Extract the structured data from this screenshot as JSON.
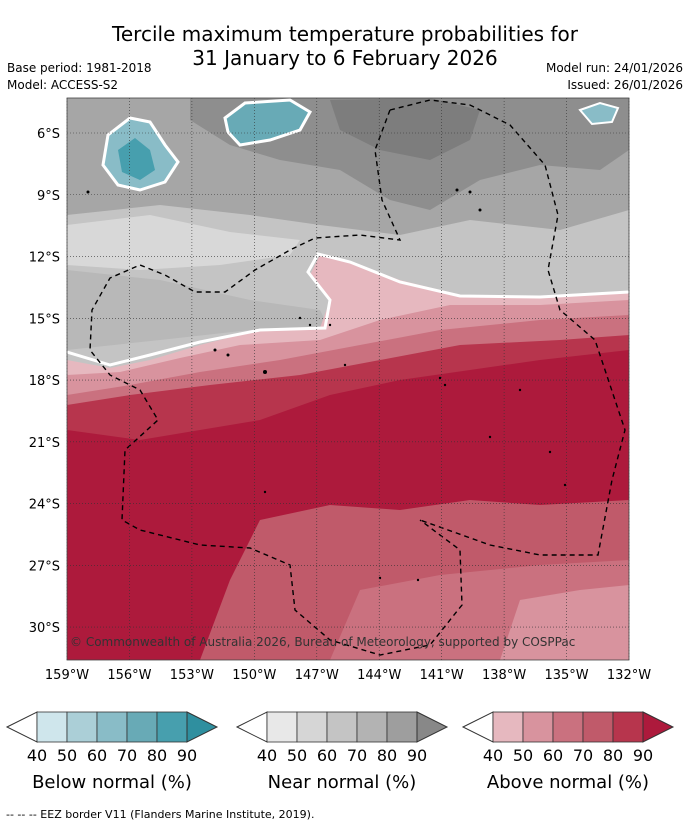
{
  "title": {
    "line1": "Tercile maximum temperature probabilities for",
    "line2": "31 January to 6 February 2026"
  },
  "meta": {
    "base_period": "Base period: 1981-2018",
    "model": "Model: ACCESS-S2",
    "model_run": "Model run: 24/01/2026",
    "issued": "Issued: 26/01/2026"
  },
  "map": {
    "lat_ticks": [
      "6°S",
      "9°S",
      "12°S",
      "15°S",
      "18°S",
      "21°S",
      "24°S",
      "27°S",
      "30°S"
    ],
    "lon_ticks": [
      "159°W",
      "156°W",
      "153°W",
      "150°W",
      "147°W",
      "144°W",
      "141°W",
      "138°W",
      "135°W",
      "132°W"
    ],
    "lat_values": [
      -6,
      -9,
      -12,
      -15,
      -18,
      -21,
      -24,
      -27,
      -30
    ],
    "lon_values": [
      -159,
      -156,
      -153,
      -150,
      -147,
      -144,
      -141,
      -138,
      -135,
      -132
    ],
    "lat_range": [
      -31.6,
      -4.3
    ],
    "lon_range": [
      -159,
      -132
    ],
    "copyright": "© Commonwealth of Australia 2026, Bureau of Meteorology, supported by COSPPac",
    "eez_border": "dashed"
  },
  "legends": [
    {
      "name": "below",
      "label": "Below normal (%)",
      "ticks": [
        "40",
        "50",
        "60",
        "70",
        "80",
        "90"
      ],
      "colors": [
        "#cfe6ec",
        "#abcfd7",
        "#89bcc7",
        "#68aab6",
        "#479fae",
        "#2f8f9f"
      ]
    },
    {
      "name": "near",
      "label": "Near normal (%)",
      "ticks": [
        "40",
        "50",
        "60",
        "70",
        "80",
        "90"
      ],
      "colors": [
        "#e8e8e8",
        "#d6d6d6",
        "#c4c4c4",
        "#b3b3b3",
        "#9e9e9e",
        "#888888"
      ]
    },
    {
      "name": "above",
      "label": "Above normal (%)",
      "ticks": [
        "40",
        "50",
        "60",
        "70",
        "80",
        "90"
      ],
      "colors": [
        "#e6b8bf",
        "#d8939e",
        "#ca717f",
        "#c05a6a",
        "#b7354d",
        "#ad1a3c"
      ]
    }
  ],
  "footer": "--  --  -- EEZ border V11 (Flanders Marine Institute, 2019)."
}
